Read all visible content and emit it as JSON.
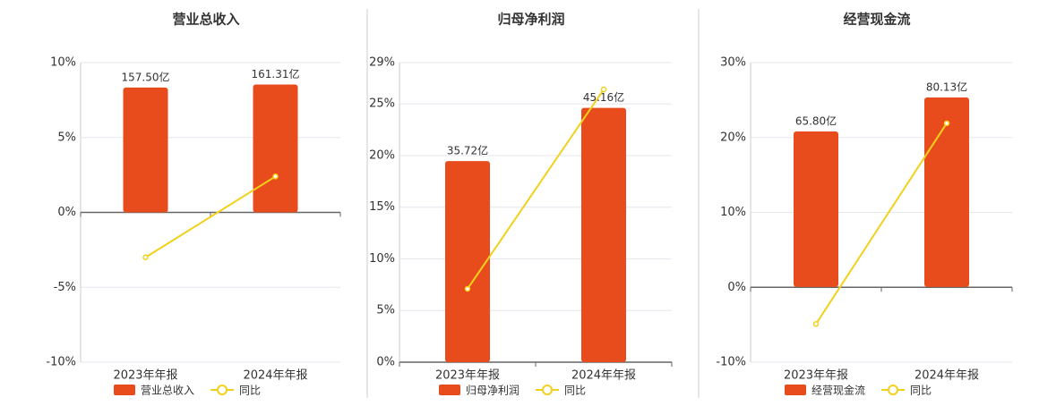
{
  "chart_data": [
    {
      "type": "combo",
      "title": "营业总收入",
      "categories": [
        "2023年年报",
        "2024年年报"
      ],
      "series": [
        {
          "name": "营业总收入",
          "type": "bar",
          "color": "#e84c1c",
          "axis": "y2",
          "values": [
            157.5,
            161.31
          ],
          "value_labels": [
            "157.50亿",
            "161.31亿"
          ]
        },
        {
          "name": "同比",
          "type": "line",
          "color": "#f2d11c",
          "values": [
            -3.0,
            2.4
          ]
        }
      ],
      "ylim": [
        -10,
        10
      ],
      "yticks": [
        {
          "value": -10,
          "label": "-10%"
        },
        {
          "value": -5,
          "label": "-5%"
        },
        {
          "value": 0,
          "label": "0%"
        },
        {
          "value": 5,
          "label": "5%"
        },
        {
          "value": 10,
          "label": "10%"
        }
      ],
      "y2lim": [
        -189,
        189
      ],
      "grid": true
    },
    {
      "type": "combo",
      "title": "归母净利润",
      "categories": [
        "2023年年报",
        "2024年年报"
      ],
      "series": [
        {
          "name": "归母净利润",
          "type": "bar",
          "color": "#e84c1c",
          "axis": "y2",
          "values": [
            35.72,
            45.16
          ],
          "value_labels": [
            "35.72亿",
            "45.16亿"
          ]
        },
        {
          "name": "同比",
          "type": "line",
          "color": "#f2d11c",
          "values": [
            7.1,
            26.4
          ]
        }
      ],
      "ylim": [
        0,
        29
      ],
      "yticks": [
        {
          "value": 0,
          "label": "0%"
        },
        {
          "value": 5,
          "label": "5%"
        },
        {
          "value": 10,
          "label": "10%"
        },
        {
          "value": 15,
          "label": "15%"
        },
        {
          "value": 20,
          "label": "20%"
        },
        {
          "value": 25,
          "label": "25%"
        },
        {
          "value": 29,
          "label": "29%"
        }
      ],
      "y2lim": [
        0,
        53.2
      ],
      "grid": true
    },
    {
      "type": "combo",
      "title": "经营现金流",
      "categories": [
        "2023年年报",
        "2024年年报"
      ],
      "series": [
        {
          "name": "经营现金流",
          "type": "bar",
          "color": "#e84c1c",
          "axis": "y2",
          "values": [
            65.8,
            80.13
          ],
          "value_labels": [
            "65.80亿",
            "80.13亿"
          ]
        },
        {
          "name": "同比",
          "type": "line",
          "color": "#f2d11c",
          "values": [
            -4.9,
            21.9
          ]
        }
      ],
      "ylim": [
        -10,
        30
      ],
      "yticks": [
        {
          "value": -10,
          "label": "-10%"
        },
        {
          "value": 0,
          "label": "0%"
        },
        {
          "value": 10,
          "label": "10%"
        },
        {
          "value": 20,
          "label": "20%"
        },
        {
          "value": 30,
          "label": "30%"
        }
      ],
      "y2lim": [
        -31.8,
        94.9
      ],
      "grid": true
    }
  ]
}
